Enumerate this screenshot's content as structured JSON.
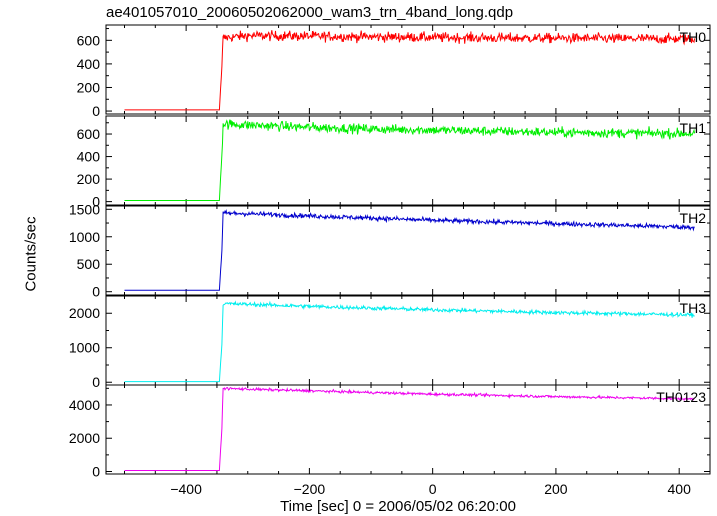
{
  "chart_data": {
    "type": "line",
    "title": "ae401057010_20060502062000_wam3_trn_4band_long.qdp",
    "xlabel": "Time [sec] 0 = 2006/05/02 06:20:00",
    "ylabel": "Counts/sec",
    "xlim": [
      -530,
      450
    ],
    "x_ticks": [
      -400,
      -200,
      0,
      200,
      400
    ],
    "x_tick_labels": [
      "−400",
      "−200",
      "0",
      "200",
      "400"
    ],
    "panels": [
      {
        "name": "TH0",
        "color": "#ff0000",
        "ylim": [
          -25,
          730
        ],
        "y_ticks": [
          0,
          200,
          400,
          600
        ],
        "y_tick_labels": [
          "0",
          "200",
          "400",
          "600"
        ],
        "pre_level": 10,
        "onset": [
          -345,
          -342
        ],
        "x": [
          -500,
          -346,
          -342,
          -340,
          -300,
          -200,
          -100,
          0,
          100,
          200,
          300,
          400,
          425
        ],
        "y": [
          10,
          10,
          380,
          620,
          640,
          635,
          630,
          625,
          620,
          618,
          615,
          612,
          610
        ],
        "noise": 30
      },
      {
        "name": "TH1",
        "color": "#00ee00",
        "ylim": [
          -30,
          760
        ],
        "y_ticks": [
          0,
          200,
          400,
          600
        ],
        "y_tick_labels": [
          "0",
          "200",
          "400",
          "600"
        ],
        "pre_level": 10,
        "onset": [
          -345,
          -342
        ],
        "x": [
          -500,
          -346,
          -342,
          -340,
          -300,
          -200,
          -100,
          0,
          100,
          200,
          300,
          400,
          425
        ],
        "y": [
          10,
          10,
          420,
          690,
          680,
          660,
          645,
          635,
          625,
          615,
          610,
          605,
          605
        ],
        "noise": 30
      },
      {
        "name": "TH2",
        "color": "#0000cc",
        "ylim": [
          -60,
          1560
        ],
        "y_ticks": [
          0,
          500,
          1000,
          1500
        ],
        "y_tick_labels": [
          "0",
          "500",
          "1000",
          "1500"
        ],
        "pre_level": 25,
        "onset": [
          -345,
          -342
        ],
        "x": [
          -500,
          -346,
          -342,
          -340,
          -300,
          -200,
          -100,
          0,
          100,
          200,
          300,
          400,
          425
        ],
        "y": [
          25,
          25,
          750,
          1430,
          1420,
          1380,
          1340,
          1300,
          1270,
          1240,
          1210,
          1180,
          1170
        ],
        "noise": 30
      },
      {
        "name": "TH3",
        "color": "#00eeee",
        "ylim": [
          -80,
          2500
        ],
        "y_ticks": [
          0,
          1000,
          2000
        ],
        "y_tick_labels": [
          "0",
          "1000",
          "2000"
        ],
        "pre_level": 20,
        "onset": [
          -345,
          -342
        ],
        "x": [
          -500,
          -346,
          -342,
          -340,
          -300,
          -200,
          -100,
          0,
          100,
          200,
          300,
          400,
          425
        ],
        "y": [
          20,
          20,
          1100,
          2280,
          2260,
          2200,
          2150,
          2100,
          2060,
          2020,
          1990,
          1960,
          1950
        ],
        "noise": 40
      },
      {
        "name": "TH0123",
        "color": "#ee00ee",
        "ylim": [
          -150,
          5200
        ],
        "y_ticks": [
          0,
          2000,
          4000
        ],
        "y_tick_labels": [
          "0",
          "2000",
          "4000"
        ],
        "pre_level": 60,
        "onset": [
          -345,
          -342
        ],
        "x": [
          -500,
          -346,
          -342,
          -340,
          -300,
          -200,
          -100,
          0,
          100,
          200,
          300,
          400,
          425
        ],
        "y": [
          60,
          60,
          2600,
          5000,
          4950,
          4850,
          4750,
          4650,
          4580,
          4500,
          4440,
          4380,
          4360
        ],
        "noise": 55
      }
    ]
  }
}
